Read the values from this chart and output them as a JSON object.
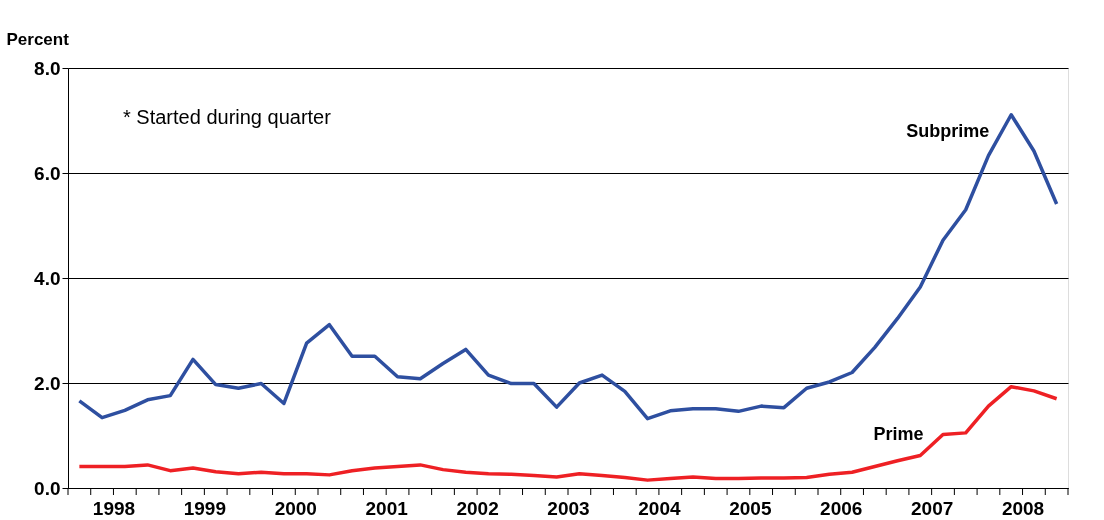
{
  "chart_data": {
    "type": "line",
    "ylabel": "Percent",
    "annotations": [
      "* Started during quarter"
    ],
    "x": [
      1998.125,
      1998.375,
      1998.625,
      1998.875,
      1999.125,
      1999.375,
      1999.625,
      1999.875,
      2000.125,
      2000.375,
      2000.625,
      2000.875,
      2001.125,
      2001.375,
      2001.625,
      2001.875,
      2002.125,
      2002.375,
      2002.625,
      2002.875,
      2003.125,
      2003.375,
      2003.625,
      2003.875,
      2004.125,
      2004.375,
      2004.625,
      2004.875,
      2005.125,
      2005.375,
      2005.625,
      2005.875,
      2006.125,
      2006.375,
      2006.625,
      2006.875,
      2007.125,
      2007.375,
      2007.625,
      2007.875,
      2008.125,
      2008.375,
      2008.625,
      2008.875
    ],
    "series": [
      {
        "name": "Subprime",
        "color": "#2e4fa0",
        "values": [
          1.66,
          1.34,
          1.48,
          1.68,
          1.76,
          2.45,
          1.97,
          1.9,
          1.99,
          1.61,
          2.76,
          3.11,
          2.51,
          2.51,
          2.12,
          2.08,
          2.37,
          2.64,
          2.15,
          1.99,
          1.99,
          1.54,
          2.0,
          2.15,
          1.84,
          1.32,
          1.47,
          1.51,
          1.51,
          1.46,
          1.56,
          1.53,
          1.9,
          2.02,
          2.2,
          2.68,
          3.23,
          3.83,
          4.72,
          5.3,
          6.33,
          7.11,
          6.42,
          5.41
        ]
      },
      {
        "name": "Prime",
        "color": "#ee2024",
        "values": [
          0.41,
          0.41,
          0.41,
          0.44,
          0.33,
          0.38,
          0.31,
          0.27,
          0.3,
          0.27,
          0.27,
          0.25,
          0.33,
          0.38,
          0.41,
          0.44,
          0.35,
          0.3,
          0.27,
          0.26,
          0.24,
          0.21,
          0.27,
          0.24,
          0.2,
          0.15,
          0.18,
          0.21,
          0.18,
          0.18,
          0.19,
          0.19,
          0.2,
          0.26,
          0.3,
          0.41,
          0.52,
          0.62,
          1.02,
          1.05,
          1.56,
          1.93,
          1.85,
          1.7
        ]
      }
    ],
    "xlim": [
      1998,
      2009
    ],
    "xticks": [
      {
        "value": 1998,
        "label": null
      },
      {
        "value": 1998.25,
        "label": null
      },
      {
        "value": 1998.5,
        "label": "1998"
      },
      {
        "value": 1998.75,
        "label": null
      },
      {
        "value": 1999,
        "label": null
      },
      {
        "value": 1999.25,
        "label": null
      },
      {
        "value": 1999.5,
        "label": "1999"
      },
      {
        "value": 1999.75,
        "label": null
      },
      {
        "value": 2000,
        "label": null
      },
      {
        "value": 2000.25,
        "label": null
      },
      {
        "value": 2000.5,
        "label": "2000"
      },
      {
        "value": 2000.75,
        "label": null
      },
      {
        "value": 2001,
        "label": null
      },
      {
        "value": 2001.25,
        "label": null
      },
      {
        "value": 2001.5,
        "label": "2001"
      },
      {
        "value": 2001.75,
        "label": null
      },
      {
        "value": 2002,
        "label": null
      },
      {
        "value": 2002.25,
        "label": null
      },
      {
        "value": 2002.5,
        "label": "2002"
      },
      {
        "value": 2002.75,
        "label": null
      },
      {
        "value": 2003,
        "label": null
      },
      {
        "value": 2003.25,
        "label": null
      },
      {
        "value": 2003.5,
        "label": "2003"
      },
      {
        "value": 2003.75,
        "label": null
      },
      {
        "value": 2004,
        "label": null
      },
      {
        "value": 2004.25,
        "label": null
      },
      {
        "value": 2004.5,
        "label": "2004"
      },
      {
        "value": 2004.75,
        "label": null
      },
      {
        "value": 2005,
        "label": null
      },
      {
        "value": 2005.25,
        "label": null
      },
      {
        "value": 2005.5,
        "label": "2005"
      },
      {
        "value": 2005.75,
        "label": null
      },
      {
        "value": 2006,
        "label": null
      },
      {
        "value": 2006.25,
        "label": null
      },
      {
        "value": 2006.5,
        "label": "2006"
      },
      {
        "value": 2006.75,
        "label": null
      },
      {
        "value": 2007,
        "label": null
      },
      {
        "value": 2007.25,
        "label": null
      },
      {
        "value": 2007.5,
        "label": "2007"
      },
      {
        "value": 2007.75,
        "label": null
      },
      {
        "value": 2008,
        "label": null
      },
      {
        "value": 2008.25,
        "label": null
      },
      {
        "value": 2008.5,
        "label": "2008"
      },
      {
        "value": 2008.75,
        "label": null
      },
      {
        "value": 2009,
        "label": null
      }
    ],
    "ylim": [
      0,
      8
    ],
    "yticks": [
      {
        "value": 0,
        "label": "0.0"
      },
      {
        "value": 2,
        "label": "2.0"
      },
      {
        "value": 4,
        "label": "4.0"
      },
      {
        "value": 6,
        "label": "6.0"
      },
      {
        "value": 8,
        "label": "8.0"
      }
    ],
    "grid": "y",
    "legend": false,
    "marker": "none",
    "line_style": "solid"
  }
}
